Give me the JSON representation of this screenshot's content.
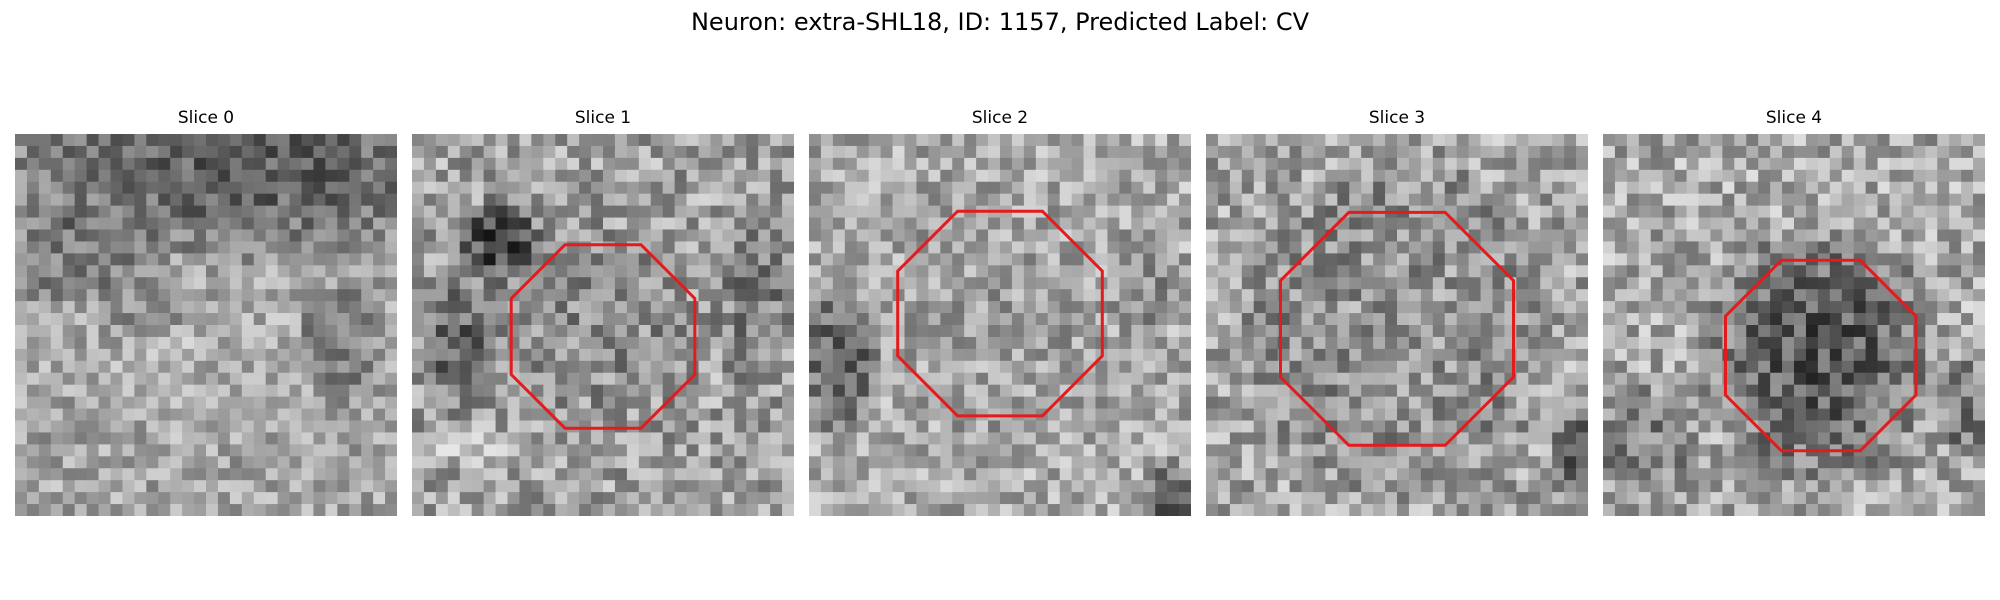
{
  "figure": {
    "title": "Neuron: extra-SHL18, ID: 1157, Predicted Label: CV"
  },
  "panels": [
    {
      "title": "Slice 0",
      "has_contour": false
    },
    {
      "title": "Slice 1",
      "has_contour": true
    },
    {
      "title": "Slice 2",
      "has_contour": true
    },
    {
      "title": "Slice 3",
      "has_contour": true
    },
    {
      "title": "Slice 4",
      "has_contour": true
    }
  ],
  "contour_color": "#e41a1c",
  "colormap": "gray"
}
